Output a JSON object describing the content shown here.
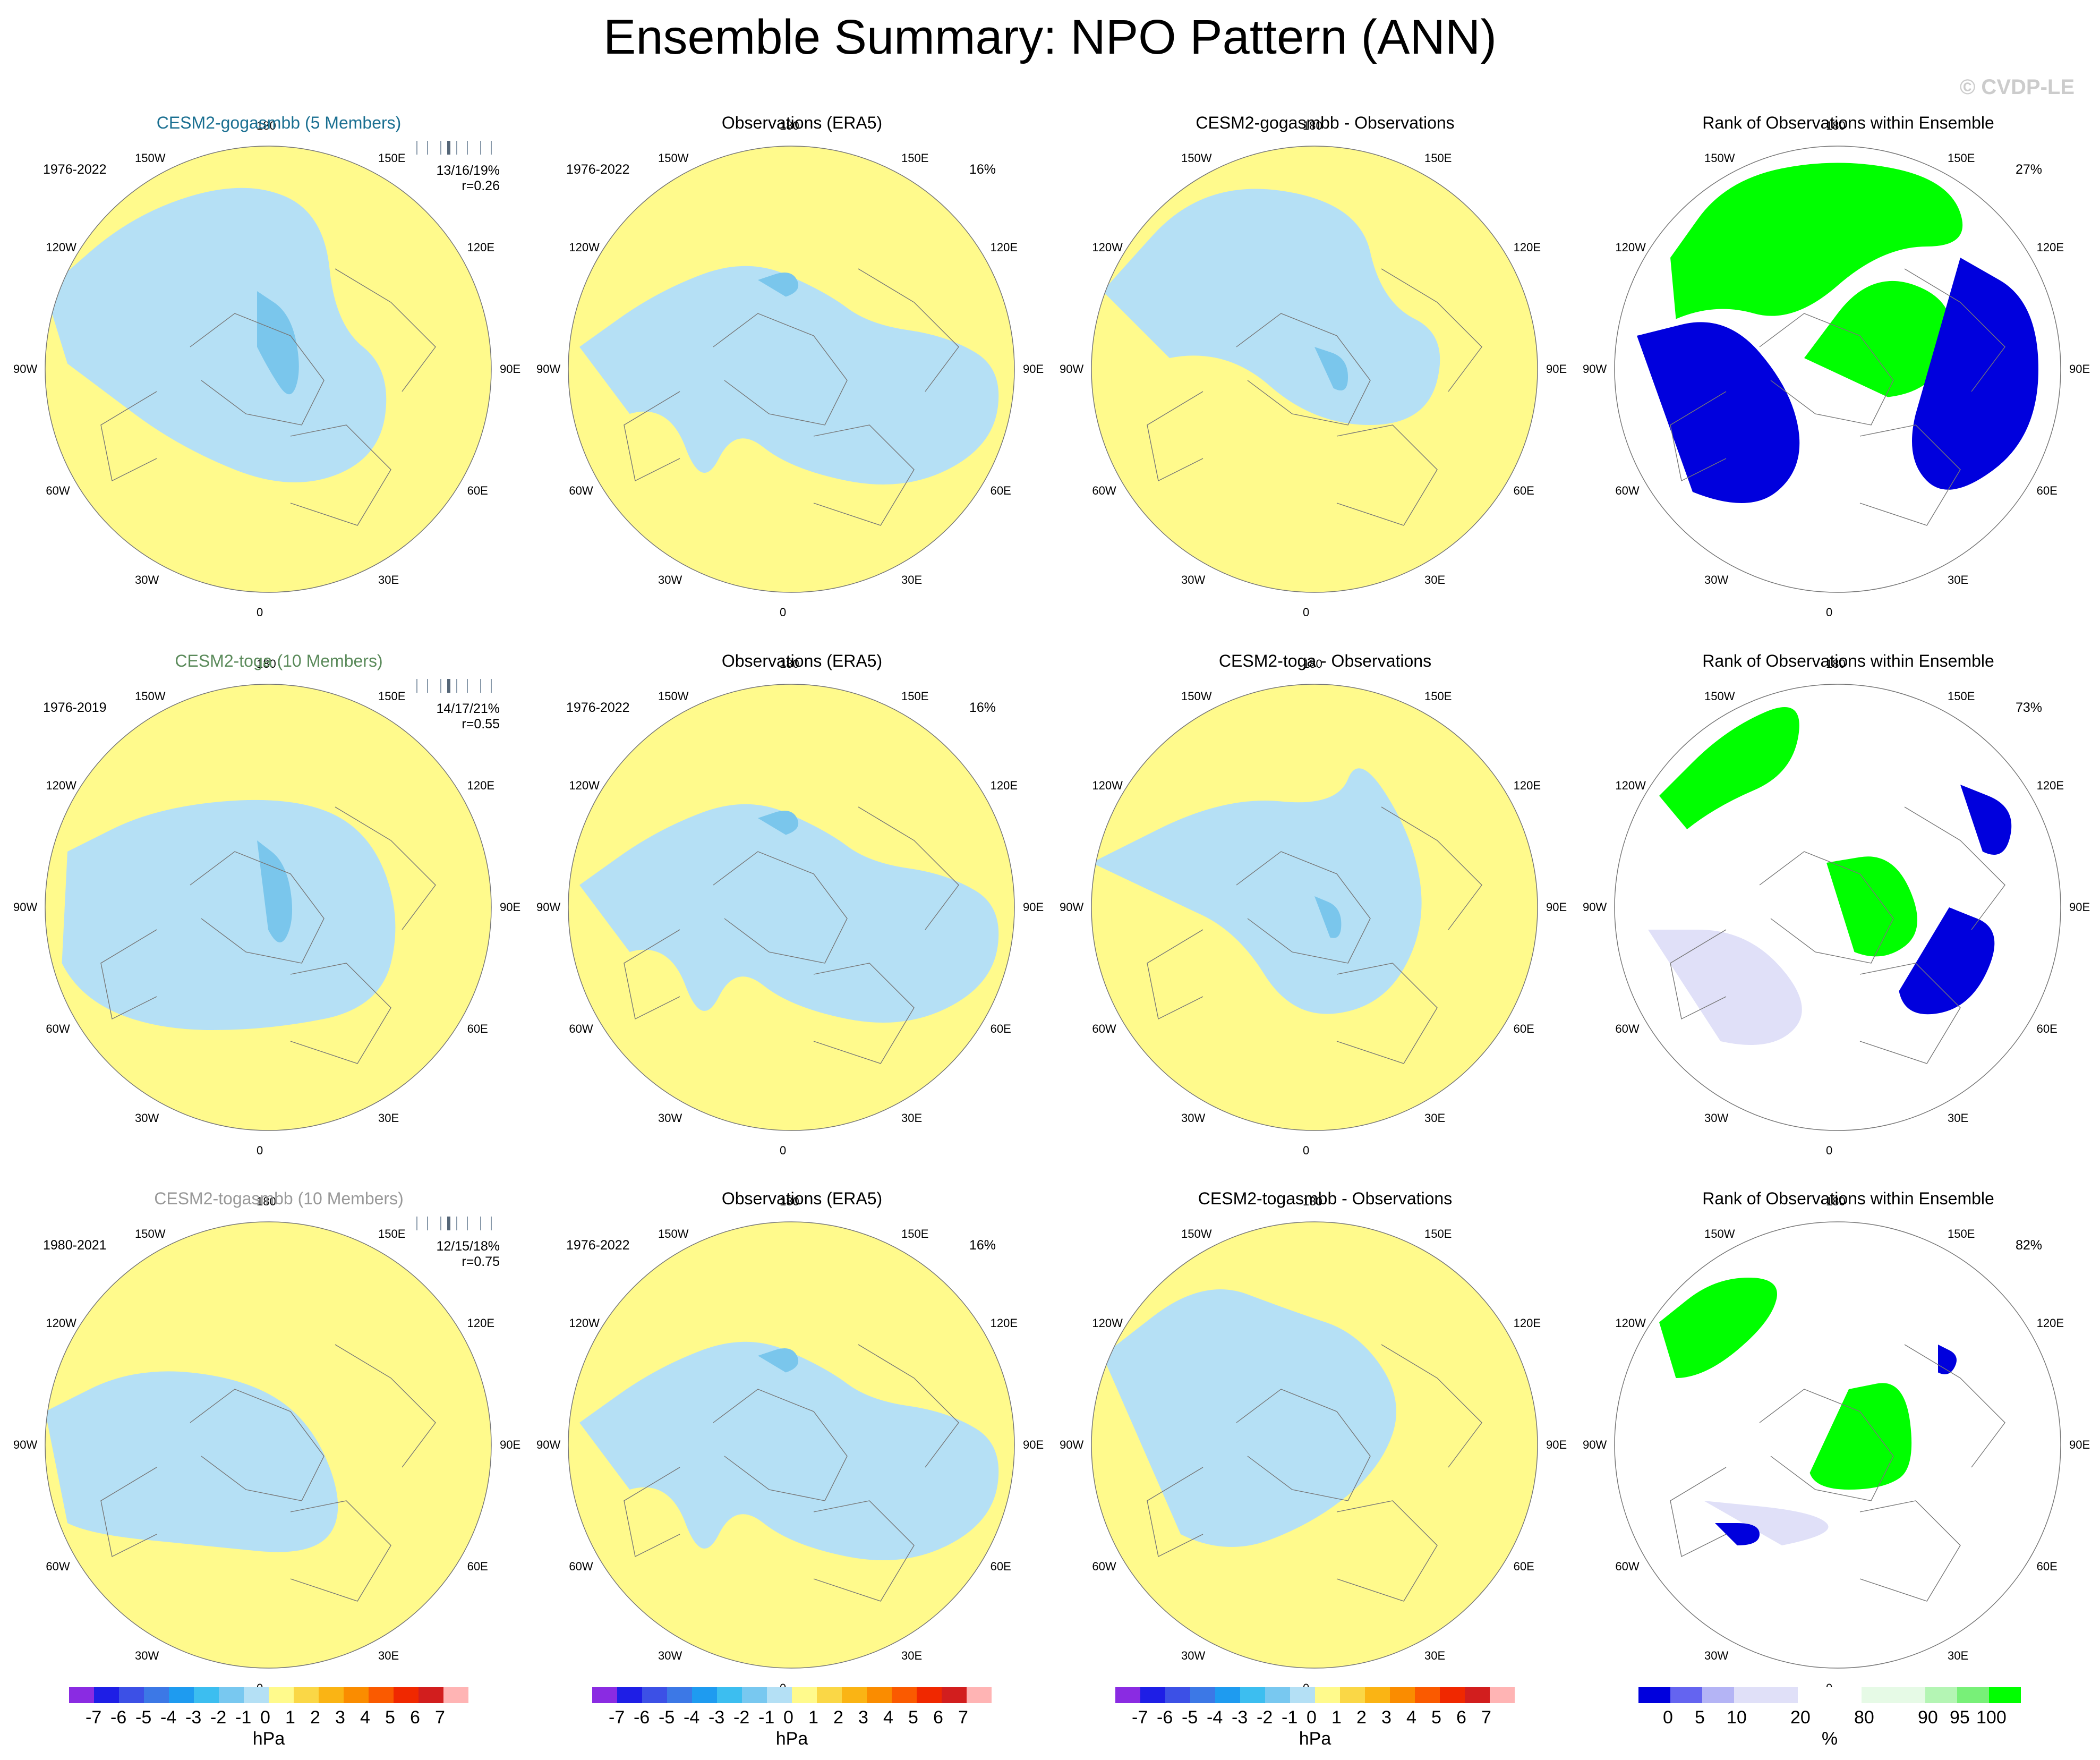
{
  "title": "Ensemble Summary: NPO Pattern (ANN)",
  "watermark": "© CVDP-LE",
  "colors": {
    "pos": "#fffa8c",
    "neg": "#b5e0f5",
    "neg2": "#7ac6ec",
    "land": "#777777",
    "green": "#00ff00",
    "blue": "#0000dd",
    "lav": "#e0e0f8",
    "white": "#ffffff"
  },
  "map_labels": [
    "180",
    "150E",
    "120E",
    "90E",
    "60E",
    "30E",
    "0",
    "30W",
    "60W",
    "90W",
    "120W",
    "150W"
  ],
  "rows": [
    {
      "model": "CESM2-gogasmbb (5 Members)",
      "model_period": "1976-2022",
      "stats_line1": "13/16/19%",
      "stats_line2": "r=0.26",
      "obs_title": "Observations (ERA5)",
      "obs_period": "1976-2022",
      "obs_pct": "16%",
      "diff_title": "CESM2-gogasmbb - Observations",
      "rank_title": "Rank of Observations within Ensemble",
      "rank_pct": "27%"
    },
    {
      "model": "CESM2-toga (10 Members)",
      "model_period": "1976-2019",
      "stats_line1": "14/17/21%",
      "stats_line2": "r=0.55",
      "obs_title": "Observations (ERA5)",
      "obs_period": "1976-2022",
      "obs_pct": "16%",
      "diff_title": "CESM2-toga - Observations",
      "rank_title": "Rank of Observations within Ensemble",
      "rank_pct": "73%"
    },
    {
      "model": "CESM2-togasmbb (10 Members)",
      "model_period": "1980-2021",
      "stats_line1": "12/15/18%",
      "stats_line2": "r=0.75",
      "obs_title": "Observations (ERA5)",
      "obs_period": "1976-2022",
      "obs_pct": "16%",
      "diff_title": "CESM2-togasmbb - Observations",
      "rank_title": "Rank of Observations within Ensemble",
      "rank_pct": "82%"
    }
  ],
  "chart_data": {
    "type": "heatmap",
    "projection": "north polar stereographic",
    "variable": "NPO pattern sea level pressure anomaly",
    "colorbar_hpa": {
      "labels": [
        "-7",
        "-6",
        "-5",
        "-4",
        "-3",
        "-2",
        "-1",
        "0",
        "1",
        "2",
        "3",
        "4",
        "5",
        "6",
        "7"
      ],
      "colors": [
        "#8a2be2",
        "#1e1ee6",
        "#3c50e6",
        "#3c78e6",
        "#1e9bf0",
        "#3cbef0",
        "#78c8f0",
        "#b4e0f5",
        "#fffa8c",
        "#fad746",
        "#fab414",
        "#fa8c00",
        "#fa5a00",
        "#f02800",
        "#d21e1e",
        "#ffb4b4"
      ],
      "unit": "hPa"
    },
    "colorbar_rank": {
      "labels": [
        "0",
        "5",
        "10",
        "20",
        "80",
        "90",
        "95",
        "100"
      ],
      "colors": [
        "#0000dd",
        "#6464f0",
        "#b4b4f5",
        "#e0e0f8",
        "#ffffff",
        "#e6fae6",
        "#b4f5b4",
        "#78f078",
        "#00ff00"
      ],
      "unit": "%"
    }
  }
}
